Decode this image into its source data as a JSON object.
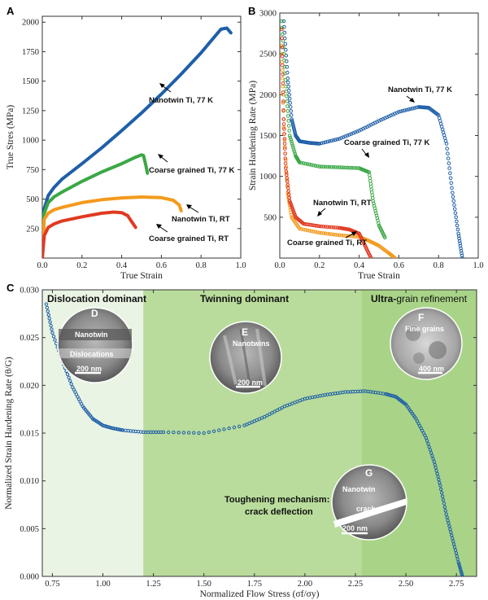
{
  "chart_data": [
    {
      "panel": "A",
      "type": "line",
      "xlabel": "True Strain",
      "ylabel": "True Stres  (MPa)",
      "xlim": [
        0.0,
        1.0
      ],
      "ylim": [
        0,
        2050
      ],
      "xticks": [
        0.0,
        0.2,
        0.4,
        0.6,
        0.8,
        1.0
      ],
      "xtick_labels": [
        "0.0",
        "0.2",
        "0.4",
        "0.6",
        "0.8",
        "1.0"
      ],
      "yticks": [
        250,
        500,
        750,
        1000,
        1250,
        1500,
        1750,
        2000
      ],
      "ytick_labels": [
        "250",
        "500",
        "750",
        "1000",
        "1250",
        "1500",
        "1750",
        "2000"
      ],
      "series": [
        {
          "name": "Nanotwin Ti, 77 K",
          "color": "#1f5fa8",
          "label": "Nanotwin Ti, 77 K",
          "x": [
            0.0,
            0.01,
            0.03,
            0.06,
            0.1,
            0.2,
            0.3,
            0.4,
            0.5,
            0.6,
            0.7,
            0.8,
            0.86,
            0.9,
            0.93,
            0.95
          ],
          "y": [
            0,
            420,
            530,
            600,
            670,
            800,
            935,
            1080,
            1230,
            1390,
            1560,
            1740,
            1860,
            1940,
            1950,
            1910
          ]
        },
        {
          "name": "Coarse grained Ti, 77 K",
          "color": "#3aa845",
          "label": "Coarse grained Ti, 77 K",
          "x": [
            0.0,
            0.01,
            0.03,
            0.06,
            0.1,
            0.2,
            0.3,
            0.4,
            0.47,
            0.5,
            0.51,
            0.52,
            0.53
          ],
          "y": [
            0,
            380,
            470,
            520,
            560,
            650,
            730,
            800,
            855,
            875,
            870,
            800,
            720
          ]
        },
        {
          "name": "Nanotwin Ti, RT",
          "color": "#f39a1c",
          "label": "Nanotwin Ti, RT",
          "x": [
            0.0,
            0.01,
            0.03,
            0.06,
            0.1,
            0.2,
            0.3,
            0.4,
            0.5,
            0.6,
            0.66,
            0.69,
            0.7
          ],
          "y": [
            0,
            330,
            380,
            410,
            430,
            470,
            495,
            510,
            518,
            512,
            490,
            450,
            400
          ]
        },
        {
          "name": "Coarse grained Ti, RT",
          "color": "#e03a22",
          "label": "Coarse grained Ti, RT",
          "x": [
            0.0,
            0.01,
            0.03,
            0.06,
            0.1,
            0.2,
            0.3,
            0.36,
            0.4,
            0.43,
            0.45,
            0.47
          ],
          "y": [
            0,
            190,
            260,
            290,
            315,
            350,
            380,
            390,
            385,
            360,
            310,
            260
          ]
        }
      ]
    },
    {
      "panel": "B",
      "type": "scatter",
      "xlabel": "True Strain",
      "ylabel": "Strain Hardening Rate (MPa)",
      "xlim": [
        0.0,
        1.0
      ],
      "ylim": [
        0,
        3000
      ],
      "xticks": [
        0.0,
        0.2,
        0.4,
        0.6,
        0.8,
        1.0
      ],
      "xtick_labels": [
        "0.0",
        "0.2",
        "0.4",
        "0.6",
        "0.8",
        "1.0"
      ],
      "yticks": [
        500,
        1000,
        1500,
        2000,
        2500,
        3000
      ],
      "ytick_labels": [
        "500",
        "1000",
        "1500",
        "2000",
        "2500",
        "3000"
      ],
      "series": [
        {
          "name": "Nanotwin Ti, 77 K",
          "color": "#1f5fa8",
          "label": "Nanotwin Ti, 77 K",
          "x": [
            0.02,
            0.04,
            0.06,
            0.08,
            0.1,
            0.15,
            0.2,
            0.3,
            0.4,
            0.5,
            0.6,
            0.7,
            0.75,
            0.8,
            0.84,
            0.87,
            0.9,
            0.92
          ],
          "y": [
            2900,
            2200,
            1700,
            1500,
            1430,
            1410,
            1400,
            1460,
            1560,
            1680,
            1790,
            1850,
            1840,
            1750,
            1400,
            800,
            300,
            0
          ]
        },
        {
          "name": "Coarse grained Ti, 77 K",
          "color": "#3aa845",
          "label": "Coarse grained Ti, 77 K",
          "x": [
            0.01,
            0.03,
            0.05,
            0.08,
            0.1,
            0.2,
            0.3,
            0.4,
            0.45,
            0.47,
            0.5,
            0.53
          ],
          "y": [
            2900,
            2100,
            1500,
            1250,
            1170,
            1120,
            1110,
            1100,
            1050,
            700,
            400,
            250
          ]
        },
        {
          "name": "Nanotwin Ti, RT",
          "color": "#f39a1c",
          "label": "Nanotwin Ti, RT",
          "x": [
            0.01,
            0.02,
            0.04,
            0.06,
            0.1,
            0.2,
            0.3,
            0.4,
            0.45,
            0.5,
            0.55,
            0.58
          ],
          "y": [
            2600,
            1600,
            800,
            500,
            360,
            310,
            280,
            260,
            210,
            150,
            60,
            0
          ]
        },
        {
          "name": "Coarse grained Ti, RT",
          "color": "#e03a22",
          "label": "Coarse grained Ti, RT",
          "x": [
            0.01,
            0.02,
            0.03,
            0.05,
            0.08,
            0.12,
            0.2,
            0.3,
            0.35,
            0.4,
            0.43,
            0.46
          ],
          "y": [
            2800,
            1700,
            1100,
            700,
            500,
            420,
            390,
            370,
            350,
            300,
            150,
            0
          ]
        }
      ]
    },
    {
      "panel": "C",
      "type": "scatter",
      "xlabel": "Normalized Flow Stress (σf/σy)",
      "ylabel": "Normalized Strain Hardening Rate (θ/G)",
      "xlim": [
        0.7,
        2.85
      ],
      "ylim": [
        0.0,
        0.03
      ],
      "xticks": [
        0.75,
        1.0,
        1.25,
        1.5,
        1.75,
        2.0,
        2.25,
        2.5,
        2.75
      ],
      "xtick_labels": [
        "0.75",
        "1.00",
        "1.25",
        "1.50",
        "1.75",
        "2.00",
        "2.25",
        "2.50",
        "2.75"
      ],
      "yticks": [
        0.0,
        0.005,
        0.01,
        0.015,
        0.02,
        0.025,
        0.03
      ],
      "ytick_labels": [
        "0.000",
        "0.005",
        "0.010",
        "0.015",
        "0.020",
        "0.025",
        "0.030"
      ],
      "regions": [
        {
          "name": "Dislocation dominant",
          "x": [
            0.7,
            1.2
          ],
          "color": "#eaf4e4"
        },
        {
          "name": "Twinning dominant",
          "x": [
            1.2,
            2.28
          ],
          "color": "#b9dc9c"
        },
        {
          "name": "Ultra-grain refinement",
          "x": [
            2.28,
            2.85
          ],
          "color": "#a9d488"
        }
      ],
      "series": [
        {
          "name": "Nanotwin Ti, 77 K",
          "color": "#1f5fa8",
          "x": [
            0.72,
            0.75,
            0.8,
            0.85,
            0.9,
            0.95,
            1.0,
            1.05,
            1.1,
            1.2,
            1.3,
            1.5,
            1.7,
            1.8,
            1.9,
            2.0,
            2.1,
            2.2,
            2.3,
            2.4,
            2.45,
            2.5,
            2.55,
            2.6,
            2.64,
            2.67,
            2.7,
            2.73,
            2.76,
            2.78
          ],
          "y": [
            0.0285,
            0.0255,
            0.0225,
            0.0198,
            0.0178,
            0.0165,
            0.0158,
            0.0155,
            0.0153,
            0.0151,
            0.0151,
            0.015,
            0.0158,
            0.0167,
            0.0178,
            0.0186,
            0.019,
            0.0193,
            0.0194,
            0.0191,
            0.0188,
            0.018,
            0.0165,
            0.0145,
            0.012,
            0.0095,
            0.0065,
            0.004,
            0.0015,
            0.0
          ]
        }
      ]
    }
  ],
  "panels": {
    "a_letter": "A",
    "b_letter": "B",
    "c_letter": "C"
  },
  "panel_c_annotations": {
    "region_1": "Dislocation dominant",
    "region_2": "Twinning dominant",
    "region_3_prefix": "Ultra-",
    "region_3_suffix": "grain refinement",
    "mechanism_line1": "Toughening mechanism:",
    "mechanism_line2": "crack deflection"
  },
  "insets": {
    "D": {
      "letter": "D",
      "label1": "Nanotwin",
      "label2": "Dislocations",
      "scale": "200 nm"
    },
    "E": {
      "letter": "E",
      "label1": "Nanotwins",
      "scale": "200 nm"
    },
    "F": {
      "letter": "F",
      "label1": "Fine grains",
      "scale": "400 nm"
    },
    "G": {
      "letter": "G",
      "label1": "Nanotwin",
      "label2": "crack",
      "scale": "200 nm"
    }
  },
  "colors": {
    "nanotwin_77k": "#1f5fa8",
    "coarse_77k": "#3aa845",
    "nanotwin_rt": "#f39a1c",
    "coarse_rt": "#e03a22"
  }
}
